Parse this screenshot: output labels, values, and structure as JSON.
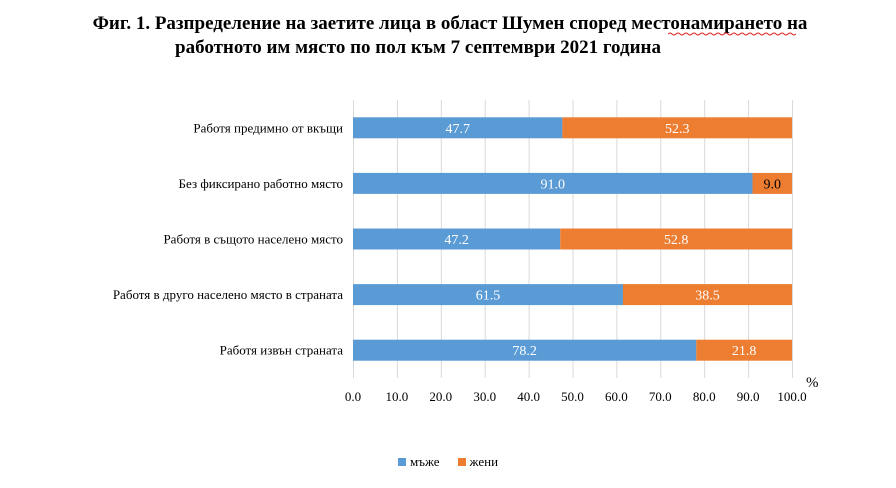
{
  "title_line1": "Фиг. 1. Разпределение на заетите лица в област Шумен според местонамирането на",
  "title_line2": "работното им място по пол към 7 септември 2021 година",
  "chart_data": {
    "type": "bar",
    "orientation": "horizontal",
    "stacked": true,
    "title": "Фиг. 1. Разпределение на заетите лица в област Шумен според местонамирането на работното им място по пол към 7 септември 2021 година",
    "categories": [
      "Работя предимно от вкъщи",
      "Без фиксирано работно място",
      "Работя в същото населено място",
      "Работя в друго населено място в страната",
      "Работя извън страната"
    ],
    "series": [
      {
        "name": "мъже",
        "color": "#5b9bd5",
        "values": [
          47.7,
          91.0,
          47.2,
          61.5,
          78.2
        ]
      },
      {
        "name": "жени",
        "color": "#ed7d31",
        "values": [
          52.3,
          9.0,
          52.8,
          38.5,
          21.8
        ]
      }
    ],
    "x_ticks": [
      "0.0",
      "10.0",
      "20.0",
      "30.0",
      "40.0",
      "50.0",
      "60.0",
      "70.0",
      "80.0",
      "90.0",
      "100.0"
    ],
    "xlim": [
      0,
      100
    ],
    "unit": "%",
    "grid": true,
    "legend_position": "bottom"
  }
}
